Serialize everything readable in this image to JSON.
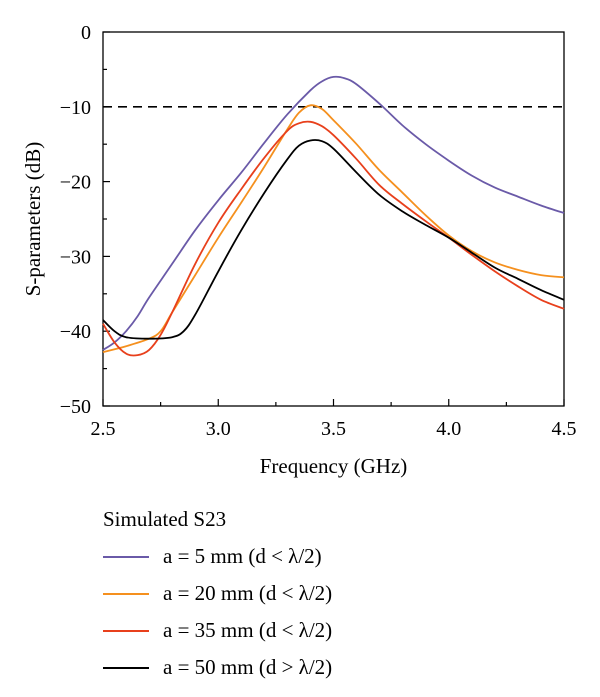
{
  "chart_data": {
    "type": "line",
    "xlabel": "Frequency (GHz)",
    "ylabel": "S-parameters (dB)",
    "xlim": [
      2.5,
      4.5
    ],
    "ylim": [
      -50,
      0
    ],
    "xticks": [
      "2.5",
      "3.0",
      "3.5",
      "4.0",
      "4.5"
    ],
    "yticks": [
      "0",
      "-10",
      "-20",
      "-30",
      "-40",
      "-50"
    ],
    "grid": false,
    "reference_line": {
      "y": -10,
      "style": "dashed",
      "color": "#000000"
    },
    "legend": {
      "title": "Simulated S23",
      "placement": "below"
    },
    "series": [
      {
        "name": "a = 5 mm (d < λ/2)",
        "color": "#6a5aa8",
        "x": [
          2.5,
          2.55,
          2.6,
          2.65,
          2.7,
          2.8,
          2.9,
          3.0,
          3.1,
          3.2,
          3.3,
          3.4,
          3.45,
          3.5,
          3.55,
          3.6,
          3.7,
          3.8,
          3.9,
          4.0,
          4.1,
          4.2,
          4.3,
          4.4,
          4.5
        ],
        "y": [
          -42.5,
          -41.5,
          -40.0,
          -38.0,
          -35.5,
          -31.0,
          -26.5,
          -22.5,
          -18.8,
          -14.8,
          -11.0,
          -7.8,
          -6.6,
          -6.0,
          -6.2,
          -7.0,
          -9.6,
          -12.5,
          -15.0,
          -17.2,
          -19.2,
          -20.8,
          -22.0,
          -23.2,
          -24.2
        ]
      },
      {
        "name": "a = 20 mm (d < λ/2)",
        "color": "#f5901e",
        "x": [
          2.5,
          2.6,
          2.7,
          2.75,
          2.8,
          2.9,
          3.0,
          3.1,
          3.2,
          3.3,
          3.35,
          3.4,
          3.45,
          3.5,
          3.6,
          3.7,
          3.8,
          3.9,
          4.0,
          4.1,
          4.2,
          4.3,
          4.4,
          4.5
        ],
        "y": [
          -42.8,
          -42.0,
          -41.0,
          -40.0,
          -37.5,
          -32.5,
          -27.5,
          -22.8,
          -18.0,
          -13.0,
          -10.8,
          -9.8,
          -10.3,
          -11.8,
          -15.0,
          -18.5,
          -21.5,
          -24.5,
          -27.2,
          -29.3,
          -30.8,
          -31.8,
          -32.5,
          -32.8
        ]
      },
      {
        "name": "a = 35 mm (d < λ/2)",
        "color": "#e8401c",
        "x": [
          2.5,
          2.55,
          2.6,
          2.65,
          2.7,
          2.75,
          2.8,
          2.9,
          3.0,
          3.1,
          3.2,
          3.3,
          3.35,
          3.4,
          3.45,
          3.5,
          3.6,
          3.7,
          3.8,
          3.9,
          4.0,
          4.1,
          4.2,
          4.3,
          4.4,
          4.5
        ],
        "y": [
          -39.0,
          -41.5,
          -43.0,
          -43.2,
          -42.5,
          -40.5,
          -37.5,
          -31.0,
          -25.5,
          -21.0,
          -16.8,
          -13.2,
          -12.2,
          -12.0,
          -12.6,
          -13.8,
          -17.0,
          -20.5,
          -23.0,
          -25.3,
          -27.5,
          -29.8,
          -32.0,
          -34.0,
          -35.8,
          -37.0
        ]
      },
      {
        "name": "a = 50 mm (d > λ/2)",
        "color": "#000000",
        "x": [
          2.5,
          2.55,
          2.6,
          2.7,
          2.8,
          2.85,
          2.9,
          3.0,
          3.1,
          3.2,
          3.3,
          3.35,
          3.4,
          3.45,
          3.5,
          3.6,
          3.7,
          3.8,
          3.9,
          4.0,
          4.1,
          4.2,
          4.3,
          4.4,
          4.5
        ],
        "y": [
          -38.5,
          -40.0,
          -40.8,
          -41.0,
          -40.8,
          -40.0,
          -37.8,
          -32.0,
          -26.5,
          -21.5,
          -17.0,
          -15.2,
          -14.5,
          -14.6,
          -15.6,
          -18.8,
          -21.8,
          -24.0,
          -25.8,
          -27.5,
          -29.5,
          -31.5,
          -33.0,
          -34.5,
          -35.8
        ]
      }
    ]
  }
}
